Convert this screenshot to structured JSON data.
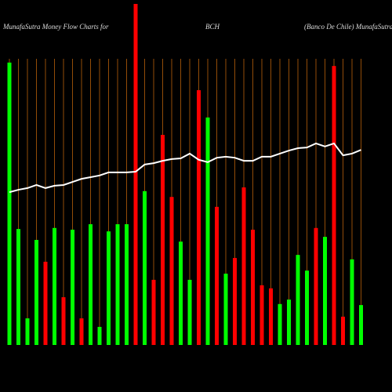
{
  "chart_data": {
    "type": "bar",
    "title": "MunafaSutra  Money Flow  Charts for",
    "ticker": "BCH",
    "subtitle": "(Banco  De  Chile) MunafaSutra.com",
    "categories": [
      null,
      null,
      null,
      null,
      null,
      null,
      null,
      null,
      null,
      null,
      null,
      null,
      null,
      null,
      null,
      null,
      null,
      null,
      null,
      null,
      null,
      null,
      null,
      null,
      null,
      null,
      null,
      null,
      null,
      null,
      null,
      null,
      null,
      null,
      null,
      null,
      null,
      null,
      null,
      null
    ],
    "series": [
      {
        "type": "bar",
        "values": [
          82.8,
          34.0,
          7.8,
          30.8,
          24.4,
          34.3,
          14.0,
          33.8,
          7.8,
          35.4,
          5.3,
          33.3,
          35.4,
          35.4,
          100,
          45.1,
          19.1,
          61.6,
          43.4,
          30.3,
          19.1,
          74.7,
          66.7,
          40.5,
          20.9,
          25.5,
          46.2,
          33.8,
          17.5,
          16.6,
          12.0,
          13.3,
          26.4,
          21.8,
          34.3,
          31.7,
          81.8,
          8.3,
          25.1,
          11.7
        ],
        "colors": [
          "#00ff00",
          "#00ff00",
          "#00ff00",
          "#00ff00",
          "#ff0000",
          "#00ff00",
          "#ff0000",
          "#00ff00",
          "#ff0000",
          "#00ff00",
          "#00ff00",
          "#00ff00",
          "#00ff00",
          "#00ff00",
          "#ff0000",
          "#00ff00",
          "#ff0000",
          "#ff0000",
          "#ff0000",
          "#00ff00",
          "#00ff00",
          "#ff0000",
          "#00ff00",
          "#ff0000",
          "#00ff00",
          "#ff0000",
          "#ff0000",
          "#ff0000",
          "#ff0000",
          "#ff0000",
          "#00ff00",
          "#00ff00",
          "#00ff00",
          "#00ff00",
          "#ff0000",
          "#00ff00",
          "#ff0000",
          "#ff0000",
          "#00ff00",
          "#00ff00"
        ]
      },
      {
        "type": "line",
        "color": "#ffffff",
        "values": [
          44.8,
          45.5,
          46.0,
          46.9,
          46.0,
          46.7,
          46.9,
          47.8,
          48.7,
          49.2,
          49.7,
          50.6,
          50.6,
          50.6,
          50.8,
          52.9,
          53.3,
          54.0,
          54.5,
          54.7,
          56.1,
          54.3,
          53.6,
          54.9,
          55.2,
          54.9,
          54.0,
          54.0,
          55.2,
          55.2,
          56.1,
          57.0,
          57.7,
          57.9,
          59.1,
          58.2,
          59.1,
          55.6,
          56.1,
          57.2
        ]
      }
    ],
    "ylim": [
      0,
      100
    ],
    "grid_color": "#b8600a",
    "background": "#000000"
  }
}
